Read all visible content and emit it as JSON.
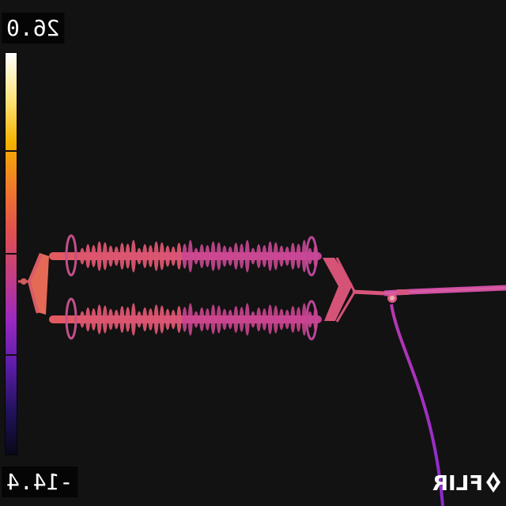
{
  "overlay": {
    "temp_max": "26.0",
    "temp_min": "-14.4",
    "brand": "FLIR"
  },
  "colors": {
    "background": "#121212",
    "palette": [
      "#ffffff",
      "#ffe680",
      "#f7b200",
      "#f07a2a",
      "#e0504f",
      "#c33d83",
      "#9a28c2",
      "#5d1ca8",
      "#22125e",
      "#080818"
    ],
    "conductor": "#c94a9c",
    "insulator": "#e0546f",
    "cable": "#9a2fc4"
  }
}
